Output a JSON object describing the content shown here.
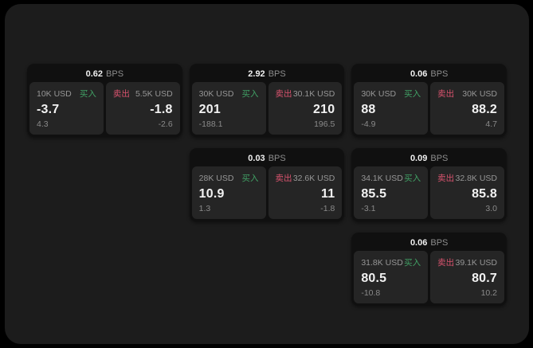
{
  "theme": {
    "outer_bg": "#000000",
    "panel_bg": "#1c1c1c",
    "card_bg": "#101010",
    "tile_bg": "#252525",
    "text_primary": "#f2f2f2",
    "text_secondary": "#969696",
    "buy_color": "#41a165",
    "sell_color": "#d9536e"
  },
  "labels": {
    "bps": "BPS",
    "buy": "买入",
    "sell": "卖出"
  },
  "cards": [
    {
      "bps": "0.62",
      "buy": {
        "size": "10K USD",
        "price": "-3.7",
        "delta": "4.3"
      },
      "sell": {
        "size": "5.5K USD",
        "price": "-1.8",
        "delta": "-2.6"
      }
    },
    {
      "bps": "2.92",
      "buy": {
        "size": "30K USD",
        "price": "201",
        "delta": "-188.1"
      },
      "sell": {
        "size": "30.1K USD",
        "price": "210",
        "delta": "196.5"
      }
    },
    {
      "bps": "0.06",
      "buy": {
        "size": "30K USD",
        "price": "88",
        "delta": "-4.9"
      },
      "sell": {
        "size": "30K USD",
        "price": "88.2",
        "delta": "4.7"
      }
    },
    {
      "bps": "0.03",
      "buy": {
        "size": "28K USD",
        "price": "10.9",
        "delta": "1.3"
      },
      "sell": {
        "size": "32.6K USD",
        "price": "11",
        "delta": "-1.8"
      }
    },
    {
      "bps": "0.09",
      "buy": {
        "size": "34.1K USD",
        "price": "85.5",
        "delta": "-3.1"
      },
      "sell": {
        "size": "32.8K USD",
        "price": "85.8",
        "delta": "3.0"
      }
    },
    {
      "bps": "0.06",
      "buy": {
        "size": "31.8K USD",
        "price": "80.5",
        "delta": "-10.8"
      },
      "sell": {
        "size": "39.1K USD",
        "price": "80.7",
        "delta": "10.2"
      }
    }
  ]
}
